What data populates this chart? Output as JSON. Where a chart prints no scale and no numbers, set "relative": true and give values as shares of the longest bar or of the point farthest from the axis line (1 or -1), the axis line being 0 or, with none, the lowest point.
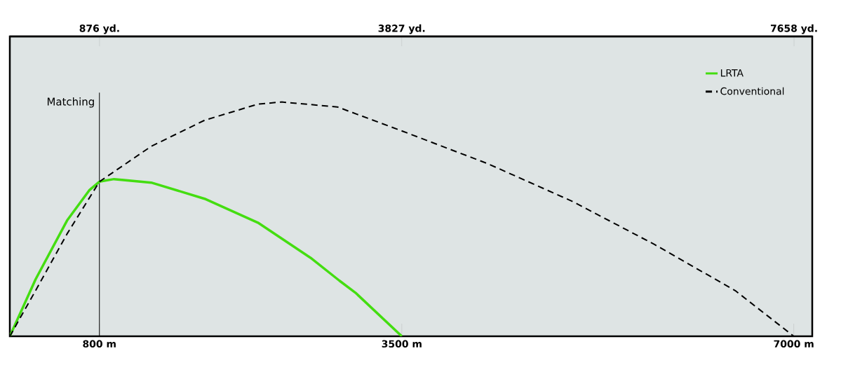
{
  "chart_data": {
    "type": "line",
    "relative": true,
    "xlim": [
      0,
      7165
    ],
    "xticks": [
      {
        "value": 800,
        "label": "800 m"
      },
      {
        "value": 3500,
        "label": "3500 m"
      },
      {
        "value": 7000,
        "label": "7000 m"
      }
    ],
    "x2lim": [
      0,
      7836
    ],
    "x2ticks": [
      {
        "value": 876,
        "label": "876 yd."
      },
      {
        "value": 3827,
        "label": "3827 yd."
      },
      {
        "value": 7658,
        "label": "7658 yd."
      }
    ],
    "tick_labels": "x",
    "legend": "top right",
    "ref_lines": [
      {
        "axis": "x",
        "value": 800,
        "label": "Matching",
        "color": "#000000"
      }
    ],
    "series": [
      {
        "name": "LRTA",
        "color": "#44dd11",
        "line_style": "solid",
        "x": [
          0,
          230,
          511,
          709,
          800,
          930,
          1263,
          1739,
          2215,
          2685,
          2944,
          3086,
          3500
        ],
        "values": [
          0,
          0.243,
          0.494,
          0.623,
          0.66,
          0.671,
          0.656,
          0.587,
          0.485,
          0.335,
          0.237,
          0.186,
          0
        ]
      },
      {
        "name": "Conventional",
        "color": "#000000",
        "line_style": "dashed",
        "x": [
          0,
          230,
          511,
          800,
          1263,
          1739,
          2215,
          2425,
          2925,
          3515,
          4266,
          5027,
          5756,
          6477,
          7000
        ],
        "values": [
          0,
          0.195,
          0.437,
          0.66,
          0.811,
          0.922,
          0.991,
          1.0,
          0.979,
          0.874,
          0.737,
          0.575,
          0.392,
          0.195,
          0
        ]
      }
    ]
  }
}
